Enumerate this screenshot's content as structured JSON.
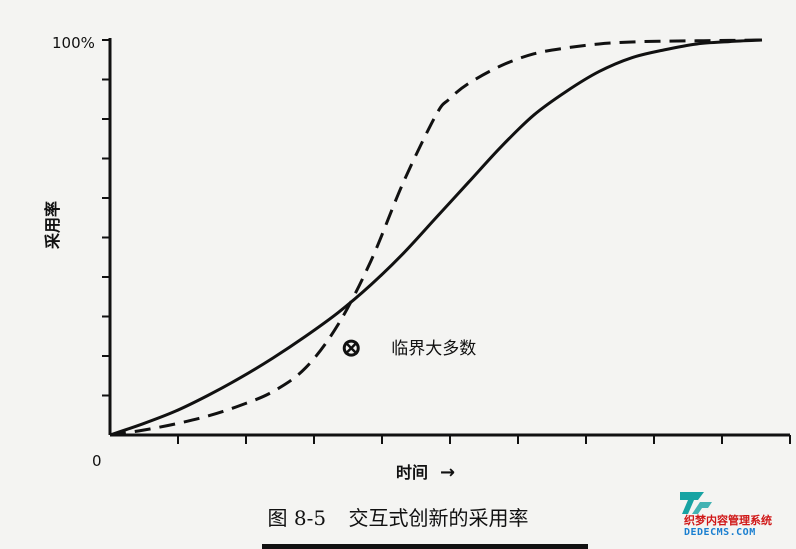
{
  "chart_data": {
    "type": "line",
    "ylabel": "采用率",
    "xlabel": "时间",
    "x_arrow": "→",
    "y_top_label": "100%",
    "origin_label": "0",
    "ylim": [
      0,
      100
    ],
    "xlim": [
      0,
      100
    ],
    "grid": false,
    "series": [
      {
        "style": "solid",
        "x": [
          0,
          5,
          10,
          15,
          20,
          25,
          30,
          35,
          40,
          45,
          50,
          55,
          60,
          65,
          70,
          75,
          80,
          85,
          90,
          95,
          100
        ],
        "y": [
          0,
          2.8,
          6,
          10,
          14.5,
          19.5,
          25,
          31,
          38,
          46,
          55,
          64,
          73,
          81,
          87,
          92,
          95.5,
          97.5,
          99,
          99.6,
          100
        ]
      },
      {
        "style": "dashed",
        "x": [
          0,
          5,
          10,
          15,
          20,
          25,
          30,
          35,
          40,
          45,
          50,
          52,
          55,
          60,
          65,
          70,
          75,
          80,
          85,
          90,
          95,
          100
        ],
        "y": [
          0,
          1.2,
          2.8,
          4.8,
          7.5,
          11,
          17,
          28,
          44,
          64,
          81,
          85,
          89,
          93.5,
          96.5,
          98,
          99,
          99.5,
          99.7,
          99.8,
          99.9,
          100
        ]
      }
    ],
    "annotations": [
      {
        "label": "临界大多数",
        "x": 37,
        "y": 22,
        "marker": "circle-x"
      }
    ]
  },
  "caption": {
    "figure_no": "图 8-5",
    "title": "交互式创新的采用率"
  },
  "watermark": {
    "line1": "织梦内容管理系统",
    "line2": "DEDECMS.COM"
  }
}
